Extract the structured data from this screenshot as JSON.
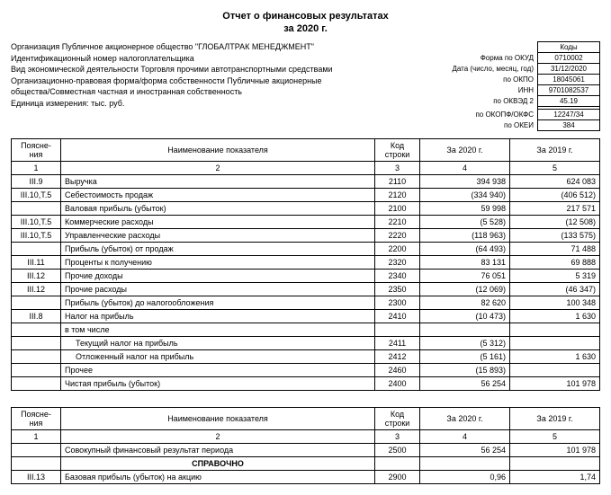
{
  "title": "Отчет о финансовых результатах",
  "subtitle": "за 2020 г.",
  "org_lines": [
    "Организация Публичное акционерное общество \"ГЛОБАЛТРАК МЕНЕДЖМЕНТ\"",
    "Идентификационный номер налогоплательщика",
    "Вид экономической деятельности Торговля прочими автотранспортными средствами",
    "Организационно-правовая форма/форма собственности Публичные акционерные",
    "общества/Совместная частная и иностранная собственность",
    "Единица измерения: тыс. руб."
  ],
  "codes_title": "Коды",
  "codes": [
    {
      "label": "Форма по ОКУД",
      "val": "0710002"
    },
    {
      "label": "Дата (число, месяц, год)",
      "val": "31/12/2020"
    },
    {
      "label": "по ОКПО",
      "val": "18045061"
    },
    {
      "label": "ИНН",
      "val": "9701082537"
    },
    {
      "label": "по ОКВЭД 2",
      "val": "45.19"
    },
    {
      "label": "",
      "val": ""
    },
    {
      "label": "по ОКОПФ/ОКФС",
      "val": "12247/34"
    },
    {
      "label": "по ОКЕИ",
      "val": "384"
    }
  ],
  "table1": {
    "headers": [
      "Поясне-\nния",
      "Наименование показателя",
      "Код\nстроки",
      "За 2020 г.",
      "За 2019 г."
    ],
    "colnums": [
      "1",
      "2",
      "3",
      "4",
      "5"
    ],
    "rows": [
      {
        "n": "III.9",
        "name": "Выручка",
        "code": "2110",
        "v20": "394 938",
        "v19": "624 083"
      },
      {
        "n": "III.10,Т.5",
        "name": "Себестоимость продаж",
        "code": "2120",
        "v20": "(334 940)",
        "v19": "(406 512)"
      },
      {
        "n": "",
        "name": "Валовая прибыль (убыток)",
        "code": "2100",
        "v20": "59 998",
        "v19": "217 571"
      },
      {
        "n": "III.10,Т.5",
        "name": "Коммерческие расходы",
        "code": "2210",
        "v20": "(5 528)",
        "v19": "(12 508)"
      },
      {
        "n": "III.10,Т.5",
        "name": "Управленческие расходы",
        "code": "2220",
        "v20": "(118 963)",
        "v19": "(133 575)"
      },
      {
        "n": "",
        "name": "Прибыль (убыток) от продаж",
        "code": "2200",
        "v20": "(64 493)",
        "v19": "71 488"
      },
      {
        "n": "III.11",
        "name": "Проценты к получению",
        "code": "2320",
        "v20": "83 131",
        "v19": "69 888"
      },
      {
        "n": "III.12",
        "name": "Прочие доходы",
        "code": "2340",
        "v20": "76 051",
        "v19": "5 319"
      },
      {
        "n": "III.12",
        "name": "Прочие расходы",
        "code": "2350",
        "v20": "(12 069)",
        "v19": "(46 347)"
      },
      {
        "n": "",
        "name": "Прибыль (убыток) до налогообложения",
        "code": "2300",
        "v20": "82 620",
        "v19": "100 348"
      },
      {
        "n": "III.8",
        "name": "Налог на прибыль",
        "code": "2410",
        "v20": "(10 473)",
        "v19": "1 630"
      },
      {
        "n": "",
        "name": "в том числе",
        "code": "",
        "v20": "",
        "v19": ""
      },
      {
        "n": "",
        "name": "Текущий налог на прибыль",
        "code": "2411",
        "v20": "(5 312)",
        "v19": "",
        "indent": true
      },
      {
        "n": "",
        "name": "Отложенный налог на прибыль",
        "code": "2412",
        "v20": "(5 161)",
        "v19": "1 630",
        "indent": true
      },
      {
        "n": "",
        "name": "Прочее",
        "code": "2460",
        "v20": "(15 893)",
        "v19": ""
      },
      {
        "n": "",
        "name": "Чистая прибыль (убыток)",
        "code": "2400",
        "v20": "56 254",
        "v19": "101 978"
      }
    ]
  },
  "table2": {
    "headers": [
      "Поясне-\nния",
      "Наименование показателя",
      "Код\nстроки",
      "За 2020 г.",
      "За 2019 г."
    ],
    "colnums": [
      "1",
      "2",
      "3",
      "4",
      "5"
    ],
    "rows": [
      {
        "n": "",
        "name": "Совокупный финансовый результат периода",
        "code": "2500",
        "v20": "56 254",
        "v19": "101 978"
      },
      {
        "n": "",
        "name": "СПРАВОЧНО",
        "code": "",
        "v20": "",
        "v19": "",
        "center": true,
        "bold": true
      },
      {
        "n": "III.13",
        "name": "Базовая прибыль (убыток) на акцию",
        "code": "2900",
        "v20": "0,96",
        "v19": "1,74"
      }
    ]
  }
}
